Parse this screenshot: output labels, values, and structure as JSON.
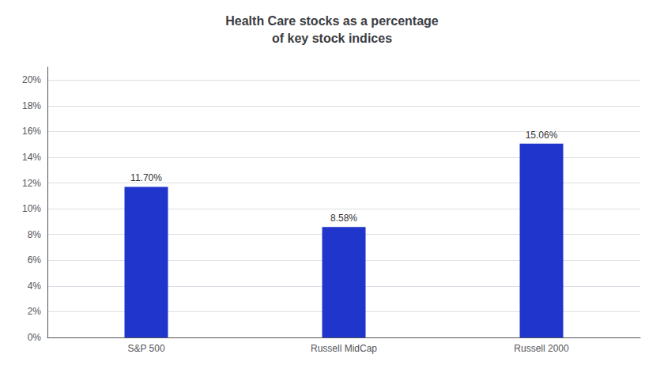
{
  "chart_data": {
    "type": "bar",
    "title": "Health Care stocks as a percentage\nof key stock indices",
    "categories": [
      "S&P 500",
      "Russell MidCap",
      "Russell 2000"
    ],
    "values": [
      0.117,
      0.0858,
      0.1506
    ],
    "value_labels": [
      "11.70%",
      "8.58%",
      "15.06%"
    ],
    "data_labels": true,
    "color": "#1f35cc",
    "ylim": [
      0,
      0.21
    ],
    "yticks": [
      {
        "value": 0,
        "label": "0%"
      },
      {
        "value": 0.02,
        "label": "2%"
      },
      {
        "value": 0.04,
        "label": "4%"
      },
      {
        "value": 0.06,
        "label": "6%"
      },
      {
        "value": 0.08,
        "label": "8%"
      },
      {
        "value": 0.1,
        "label": "10%"
      },
      {
        "value": 0.12,
        "label": "12%"
      },
      {
        "value": 0.14,
        "label": "14%"
      },
      {
        "value": 0.16,
        "label": "16%"
      },
      {
        "value": 0.18,
        "label": "18%"
      },
      {
        "value": 0.2,
        "label": "20%"
      }
    ],
    "grid": true
  }
}
